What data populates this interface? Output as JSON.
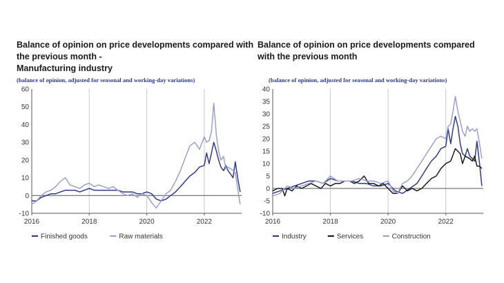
{
  "charts": [
    {
      "title_lines": [
        "Balance of opinion on price developments compared with",
        "the previous month -",
        "Manufacturing industry"
      ],
      "subtitle": "(balance of opinion, adjusted for seasonal and working-day variations)"
    },
    {
      "title_lines": [
        "Balance of opinion on price developments compared",
        "with the previous month"
      ],
      "subtitle": "(balance of opinion, adjusted for seasonal and working-day variations)"
    }
  ],
  "chart_data": [
    {
      "type": "line",
      "x_ticks": [
        "2016",
        "2018",
        "2020",
        "2022"
      ],
      "x_range": [
        2016,
        2023.3
      ],
      "ylim": [
        -10,
        60
      ],
      "y_ticks": [
        -10,
        0,
        10,
        20,
        30,
        40,
        50,
        60
      ],
      "grid": "vertical at year ticks",
      "legend_position": "bottom",
      "series": [
        {
          "name": "Finished goods",
          "color": "#2e3a8c",
          "points": [
            [
              2016.0,
              -3
            ],
            [
              2016.17,
              -3
            ],
            [
              2016.33,
              -1
            ],
            [
              2016.5,
              0
            ],
            [
              2016.67,
              1
            ],
            [
              2016.83,
              1
            ],
            [
              2017.0,
              2
            ],
            [
              2017.17,
              3
            ],
            [
              2017.33,
              3
            ],
            [
              2017.5,
              3
            ],
            [
              2017.67,
              2
            ],
            [
              2017.83,
              3
            ],
            [
              2018.0,
              4
            ],
            [
              2018.17,
              3
            ],
            [
              2018.33,
              3
            ],
            [
              2018.5,
              3
            ],
            [
              2018.67,
              3
            ],
            [
              2018.83,
              3
            ],
            [
              2019.0,
              3
            ],
            [
              2019.17,
              2
            ],
            [
              2019.33,
              2
            ],
            [
              2019.5,
              2
            ],
            [
              2019.67,
              1
            ],
            [
              2019.83,
              1
            ],
            [
              2020.0,
              2
            ],
            [
              2020.17,
              1
            ],
            [
              2020.33,
              -2
            ],
            [
              2020.5,
              -3
            ],
            [
              2020.67,
              -2
            ],
            [
              2020.83,
              0
            ],
            [
              2021.0,
              2
            ],
            [
              2021.17,
              5
            ],
            [
              2021.33,
              8
            ],
            [
              2021.5,
              11
            ],
            [
              2021.67,
              13
            ],
            [
              2021.83,
              16
            ],
            [
              2022.0,
              17
            ],
            [
              2022.08,
              24
            ],
            [
              2022.17,
              18
            ],
            [
              2022.25,
              24
            ],
            [
              2022.33,
              30
            ],
            [
              2022.42,
              25
            ],
            [
              2022.5,
              20
            ],
            [
              2022.58,
              16
            ],
            [
              2022.67,
              14
            ],
            [
              2022.75,
              17
            ],
            [
              2022.83,
              14
            ],
            [
              2022.92,
              12
            ],
            [
              2023.0,
              10
            ],
            [
              2023.08,
              19
            ],
            [
              2023.17,
              9
            ],
            [
              2023.25,
              2
            ]
          ]
        },
        {
          "name": "Raw materials",
          "color": "#9a9fd0",
          "points": [
            [
              2016.0,
              -5
            ],
            [
              2016.17,
              -3
            ],
            [
              2016.33,
              0
            ],
            [
              2016.5,
              2
            ],
            [
              2016.67,
              3
            ],
            [
              2016.83,
              5
            ],
            [
              2017.0,
              8
            ],
            [
              2017.17,
              10
            ],
            [
              2017.33,
              6
            ],
            [
              2017.5,
              5
            ],
            [
              2017.67,
              4
            ],
            [
              2017.83,
              6
            ],
            [
              2018.0,
              7
            ],
            [
              2018.17,
              5
            ],
            [
              2018.33,
              6
            ],
            [
              2018.5,
              5
            ],
            [
              2018.67,
              4
            ],
            [
              2018.83,
              5
            ],
            [
              2019.0,
              3
            ],
            [
              2019.17,
              1
            ],
            [
              2019.33,
              0
            ],
            [
              2019.5,
              1
            ],
            [
              2019.67,
              -1
            ],
            [
              2019.83,
              1
            ],
            [
              2020.0,
              0
            ],
            [
              2020.17,
              -4
            ],
            [
              2020.33,
              -7
            ],
            [
              2020.5,
              -3
            ],
            [
              2020.67,
              1
            ],
            [
              2020.83,
              3
            ],
            [
              2021.0,
              8
            ],
            [
              2021.17,
              14
            ],
            [
              2021.33,
              21
            ],
            [
              2021.5,
              28
            ],
            [
              2021.67,
              30
            ],
            [
              2021.83,
              26
            ],
            [
              2022.0,
              33
            ],
            [
              2022.08,
              30
            ],
            [
              2022.17,
              31
            ],
            [
              2022.25,
              36
            ],
            [
              2022.33,
              52
            ],
            [
              2022.42,
              34
            ],
            [
              2022.5,
              25
            ],
            [
              2022.58,
              20
            ],
            [
              2022.67,
              22
            ],
            [
              2022.75,
              15
            ],
            [
              2022.83,
              16
            ],
            [
              2022.92,
              15
            ],
            [
              2023.0,
              14
            ],
            [
              2023.08,
              13
            ],
            [
              2023.17,
              3
            ],
            [
              2023.25,
              -5
            ]
          ]
        }
      ]
    },
    {
      "type": "line",
      "x_ticks": [
        "2016",
        "2018",
        "2020",
        "2022"
      ],
      "x_range": [
        2016,
        2023.3
      ],
      "ylim": [
        -10,
        40
      ],
      "y_ticks": [
        -10,
        -5,
        0,
        5,
        10,
        15,
        20,
        25,
        30,
        35,
        40
      ],
      "grid": "vertical at year ticks",
      "legend_position": "bottom",
      "series": [
        {
          "name": "Industry",
          "color": "#2e3a8c",
          "points": [
            [
              2016.0,
              -2
            ],
            [
              2016.25,
              -1
            ],
            [
              2016.5,
              0
            ],
            [
              2016.75,
              1
            ],
            [
              2017.0,
              2
            ],
            [
              2017.25,
              3
            ],
            [
              2017.5,
              3
            ],
            [
              2017.75,
              2
            ],
            [
              2018.0,
              4
            ],
            [
              2018.25,
              3
            ],
            [
              2018.5,
              3
            ],
            [
              2018.75,
              3
            ],
            [
              2019.0,
              2
            ],
            [
              2019.25,
              2
            ],
            [
              2019.5,
              1
            ],
            [
              2019.75,
              1
            ],
            [
              2020.0,
              2
            ],
            [
              2020.25,
              -1
            ],
            [
              2020.5,
              -2
            ],
            [
              2020.75,
              0
            ],
            [
              2021.0,
              2
            ],
            [
              2021.17,
              5
            ],
            [
              2021.33,
              8
            ],
            [
              2021.5,
              11
            ],
            [
              2021.67,
              13
            ],
            [
              2021.83,
              16
            ],
            [
              2022.0,
              17
            ],
            [
              2022.08,
              24
            ],
            [
              2022.17,
              18
            ],
            [
              2022.25,
              24
            ],
            [
              2022.33,
              29
            ],
            [
              2022.42,
              25
            ],
            [
              2022.5,
              18
            ],
            [
              2022.58,
              14
            ],
            [
              2022.67,
              13
            ],
            [
              2022.75,
              16
            ],
            [
              2022.83,
              13
            ],
            [
              2022.92,
              12
            ],
            [
              2023.0,
              11
            ],
            [
              2023.08,
              19
            ],
            [
              2023.17,
              10
            ],
            [
              2023.25,
              1
            ]
          ]
        },
        {
          "name": "Services",
          "color": "#1a1a1a",
          "points": [
            [
              2016.0,
              -1
            ],
            [
              2016.17,
              0
            ],
            [
              2016.33,
              0
            ],
            [
              2016.42,
              -3
            ],
            [
              2016.5,
              0
            ],
            [
              2016.67,
              -1
            ],
            [
              2016.83,
              1
            ],
            [
              2017.0,
              0
            ],
            [
              2017.17,
              1
            ],
            [
              2017.33,
              2
            ],
            [
              2017.5,
              1
            ],
            [
              2017.67,
              0
            ],
            [
              2017.83,
              2
            ],
            [
              2018.0,
              1
            ],
            [
              2018.17,
              2
            ],
            [
              2018.33,
              2
            ],
            [
              2018.5,
              3
            ],
            [
              2018.67,
              3
            ],
            [
              2018.83,
              2
            ],
            [
              2019.0,
              3
            ],
            [
              2019.17,
              5
            ],
            [
              2019.33,
              2
            ],
            [
              2019.5,
              2
            ],
            [
              2019.67,
              1
            ],
            [
              2019.83,
              2
            ],
            [
              2020.0,
              0
            ],
            [
              2020.17,
              -2
            ],
            [
              2020.33,
              -2
            ],
            [
              2020.5,
              1
            ],
            [
              2020.67,
              -1
            ],
            [
              2020.83,
              0
            ],
            [
              2021.0,
              -1
            ],
            [
              2021.17,
              0
            ],
            [
              2021.33,
              2
            ],
            [
              2021.5,
              4
            ],
            [
              2021.67,
              5
            ],
            [
              2021.83,
              8
            ],
            [
              2022.0,
              10
            ],
            [
              2022.17,
              11
            ],
            [
              2022.33,
              16
            ],
            [
              2022.5,
              14
            ],
            [
              2022.58,
              10
            ],
            [
              2022.67,
              13
            ],
            [
              2022.83,
              12
            ],
            [
              2022.92,
              11
            ],
            [
              2023.0,
              13
            ],
            [
              2023.08,
              9
            ],
            [
              2023.17,
              9
            ],
            [
              2023.25,
              8
            ]
          ]
        },
        {
          "name": "Construction",
          "color": "#9a9fd0",
          "points": [
            [
              2016.0,
              -3
            ],
            [
              2016.25,
              -2
            ],
            [
              2016.5,
              1
            ],
            [
              2016.75,
              0
            ],
            [
              2017.0,
              1
            ],
            [
              2017.25,
              2
            ],
            [
              2017.5,
              3
            ],
            [
              2017.75,
              2
            ],
            [
              2018.0,
              5
            ],
            [
              2018.25,
              3
            ],
            [
              2018.5,
              3
            ],
            [
              2018.75,
              3
            ],
            [
              2019.0,
              4
            ],
            [
              2019.25,
              3
            ],
            [
              2019.5,
              3
            ],
            [
              2019.75,
              2
            ],
            [
              2020.0,
              3
            ],
            [
              2020.17,
              -1
            ],
            [
              2020.33,
              -2
            ],
            [
              2020.5,
              2
            ],
            [
              2020.67,
              3
            ],
            [
              2020.83,
              5
            ],
            [
              2021.0,
              8
            ],
            [
              2021.17,
              11
            ],
            [
              2021.33,
              14
            ],
            [
              2021.5,
              17
            ],
            [
              2021.67,
              20
            ],
            [
              2021.83,
              21
            ],
            [
              2022.0,
              20
            ],
            [
              2022.08,
              25
            ],
            [
              2022.17,
              26
            ],
            [
              2022.25,
              31
            ],
            [
              2022.33,
              37
            ],
            [
              2022.42,
              31
            ],
            [
              2022.5,
              27
            ],
            [
              2022.58,
              23
            ],
            [
              2022.67,
              21
            ],
            [
              2022.75,
              25
            ],
            [
              2022.83,
              23
            ],
            [
              2022.92,
              24
            ],
            [
              2023.0,
              23
            ],
            [
              2023.08,
              24
            ],
            [
              2023.17,
              18
            ],
            [
              2023.25,
              12
            ]
          ]
        }
      ]
    }
  ]
}
